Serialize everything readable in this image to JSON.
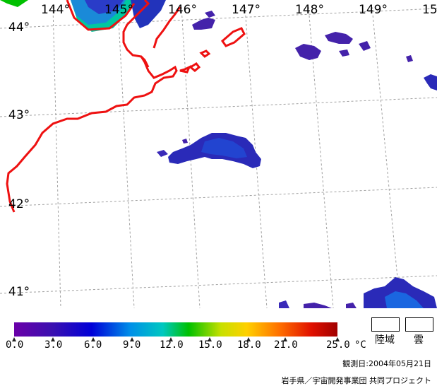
{
  "map": {
    "longitude_labels": [
      "144°",
      "145°",
      "146°",
      "147°",
      "148°",
      "149°",
      "15"
    ],
    "latitude_labels": [
      "44°",
      "43°",
      "42°",
      "41°"
    ],
    "coastline_color": "#ee1111",
    "grid_color": "#9a9a9a"
  },
  "legend": {
    "ticks": [
      "0.0",
      "3.0",
      "6.0",
      "9.0",
      "12.0",
      "15.0",
      "18.0",
      "21.0",
      "25.0"
    ],
    "unit": "°C",
    "land_label": "陸域",
    "cloud_label": "雲"
  },
  "footer": {
    "date": "観測日:2004年05月21日",
    "credit": "岩手県／宇宙開発事業団 共同プロジェクト"
  }
}
